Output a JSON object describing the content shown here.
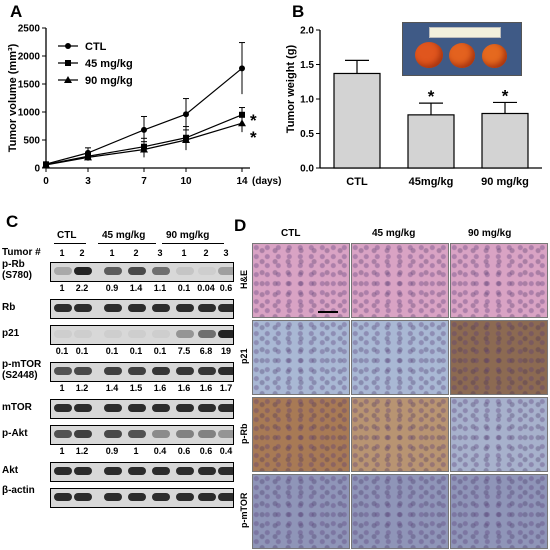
{
  "panels": {
    "a": "A",
    "b": "B",
    "c": "C",
    "d": "D"
  },
  "chart_data": [
    {
      "type": "line",
      "ylabel": "Tumor volume (mm³)",
      "xlabel": "(days)",
      "x": [
        0,
        3,
        7,
        10,
        14
      ],
      "xticks": [
        "0",
        "3",
        "7",
        "10",
        "14"
      ],
      "yticks": [
        "0",
        "500",
        "1000",
        "1500",
        "2000",
        "2500"
      ],
      "ylim": [
        0,
        2500
      ],
      "legend_position": "top-left",
      "series": [
        {
          "name": "CTL",
          "marker": "circle",
          "values": [
            70,
            270,
            680,
            960,
            1780
          ],
          "errors": [
            40,
            90,
            240,
            280,
            460
          ]
        },
        {
          "name": "45 mg/kg",
          "marker": "square",
          "values": [
            60,
            210,
            380,
            540,
            950
          ],
          "errors": [
            30,
            70,
            150,
            200,
            130
          ]
        },
        {
          "name": "90 mg/kg",
          "marker": "triangle",
          "values": [
            55,
            190,
            330,
            500,
            800
          ],
          "errors": [
            30,
            60,
            140,
            180,
            160
          ]
        }
      ],
      "annotations": [
        "*",
        "*"
      ]
    },
    {
      "type": "bar",
      "ylabel": "Tumor weight (g)",
      "categories": [
        "CTL",
        "45mg/kg",
        "90 mg/kg"
      ],
      "values": [
        1.37,
        0.77,
        0.79
      ],
      "errors": [
        0.19,
        0.17,
        0.16
      ],
      "ylim": [
        0,
        2.0
      ],
      "yticks": [
        "0.0",
        "0.5",
        "1.0",
        "1.5",
        "2.0"
      ],
      "significance": [
        "",
        "*",
        "*"
      ],
      "bar_color": "#d3d3d3"
    }
  ],
  "blot": {
    "groups": [
      "CTL",
      "45 mg/kg",
      "90 mg/kg"
    ],
    "tumor_label": "Tumor #",
    "lanes": [
      "1",
      "2",
      "1",
      "2",
      "3",
      "1",
      "2",
      "3"
    ],
    "rows": [
      {
        "label": "p-Rb (S780)",
        "intensity": [
          0.25,
          0.95,
          0.65,
          0.75,
          0.55,
          0.1,
          0.05,
          0.3
        ],
        "quant": [
          "1",
          "2.2",
          "0.9",
          "1.4",
          "1.1",
          "0.1",
          "0.04",
          "0.6"
        ]
      },
      {
        "label": "Rb",
        "intensity": [
          0.9,
          0.9,
          0.9,
          0.9,
          0.9,
          0.9,
          0.9,
          0.9
        ],
        "quant": null
      },
      {
        "label": "p21",
        "intensity": [
          0.05,
          0.05,
          0.05,
          0.05,
          0.05,
          0.35,
          0.55,
          0.95
        ],
        "quant": [
          "0.1",
          "0.1",
          "0.1",
          "0.1",
          "0.1",
          "7.5",
          "6.8",
          "19"
        ]
      },
      {
        "label": "p-mTOR (S2448)",
        "intensity": [
          0.7,
          0.75,
          0.8,
          0.8,
          0.85,
          0.85,
          0.85,
          0.9
        ],
        "quant": [
          "1",
          "1.2",
          "1.4",
          "1.5",
          "1.6",
          "1.6",
          "1.6",
          "1.7"
        ]
      },
      {
        "label": "mTOR",
        "intensity": [
          0.9,
          0.9,
          0.9,
          0.9,
          0.9,
          0.9,
          0.9,
          0.9
        ],
        "quant": null
      },
      {
        "label": "p-Akt",
        "intensity": [
          0.7,
          0.8,
          0.75,
          0.7,
          0.4,
          0.45,
          0.45,
          0.35
        ],
        "quant": [
          "1",
          "1.2",
          "0.9",
          "1",
          "0.4",
          "0.6",
          "0.6",
          "0.4"
        ]
      },
      {
        "label": "Akt",
        "intensity": [
          0.9,
          0.9,
          0.9,
          0.9,
          0.9,
          0.9,
          0.9,
          0.9
        ],
        "quant": null
      },
      {
        "label": "β-actin",
        "intensity": [
          0.9,
          0.9,
          0.9,
          0.9,
          0.9,
          0.9,
          0.9,
          0.9
        ],
        "quant": null
      }
    ]
  },
  "ihc": {
    "columns": [
      "CTL",
      "45 mg/kg",
      "90 mg/kg"
    ],
    "rows": [
      "H&E",
      "p21",
      "p-Rb",
      "p-mTOR"
    ],
    "colors": {
      "he": "#d9a3c4",
      "p21_ctl": "#a9b8d4",
      "p21_90": "#8c6a52",
      "prb_ctl": "#a87a55",
      "prb_45": "#b89472",
      "prb_90": "#a7b1cc",
      "mtor": "#8f95b8"
    }
  }
}
